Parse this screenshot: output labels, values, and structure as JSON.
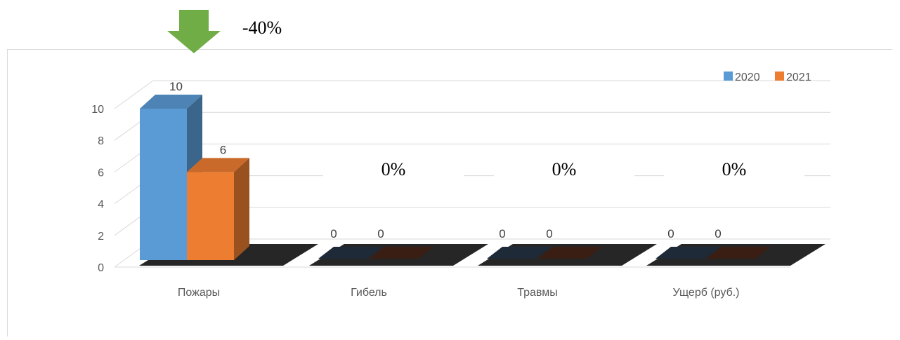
{
  "chart_data": {
    "type": "bar",
    "categories": [
      "Пожары",
      "Гибель",
      "Травмы",
      "Ущерб (руб.)"
    ],
    "series": [
      {
        "name": "2020",
        "values": [
          10,
          0,
          0,
          0
        ],
        "color": "#5b9bd5"
      },
      {
        "name": "2021",
        "values": [
          6,
          0,
          0,
          0
        ],
        "color": "#ed7d31"
      }
    ],
    "ylim": [
      0,
      10
    ],
    "yticks": [
      0,
      2,
      4,
      6,
      8,
      10
    ],
    "legend_position": "top-right",
    "grid": true,
    "annotations": {
      "change_labels": [
        "-40%",
        "0%",
        "0%",
        "0%"
      ],
      "arrow": "down-arrow",
      "arrow_color": "#70ad47"
    }
  }
}
